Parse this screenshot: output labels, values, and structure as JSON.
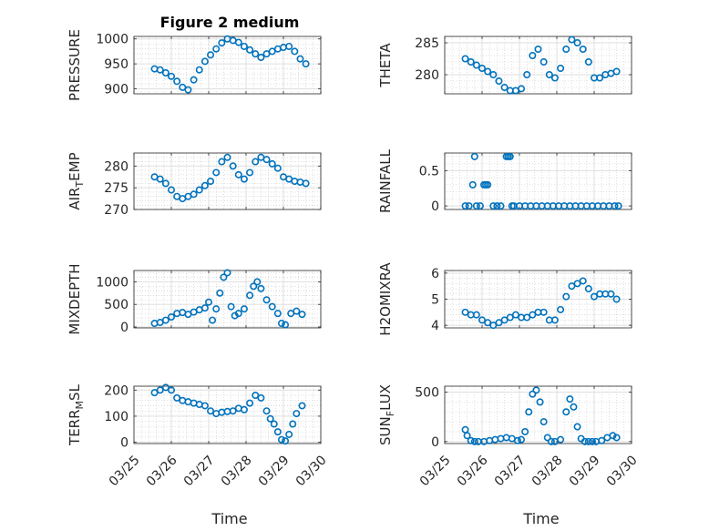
{
  "figure": {
    "title": "Figure 2 medium",
    "xlabel": "Time",
    "x_tick_labels": [
      "03/25",
      "03/26",
      "03/27",
      "03/28",
      "03/29",
      "03/30"
    ],
    "marker_color": "#0072BD"
  },
  "chart_data": [
    {
      "type": "scatter",
      "ylabel": "PRESSURE",
      "ylim": [
        890,
        1005
      ],
      "yticks": [
        900,
        950,
        1000
      ],
      "grid": true,
      "x_range": [
        0,
        5
      ],
      "x": [
        0.55,
        0.7,
        0.85,
        1.0,
        1.15,
        1.3,
        1.45,
        1.6,
        1.75,
        1.9,
        2.05,
        2.2,
        2.35,
        2.5,
        2.65,
        2.8,
        2.95,
        3.1,
        3.25,
        3.4,
        3.55,
        3.7,
        3.85,
        4.0,
        4.15,
        4.3,
        4.45,
        4.6
      ],
      "y": [
        940,
        938,
        932,
        925,
        915,
        903,
        898,
        918,
        938,
        955,
        968,
        980,
        992,
        1000,
        997,
        993,
        985,
        978,
        970,
        963,
        970,
        975,
        980,
        983,
        985,
        975,
        960,
        950
      ]
    },
    {
      "type": "scatter",
      "ylabel": "THETA",
      "ylim": [
        277,
        286
      ],
      "yticks": [
        280,
        285
      ],
      "grid": true,
      "x_range": [
        0,
        5
      ],
      "x": [
        0.55,
        0.7,
        0.85,
        1.0,
        1.15,
        1.3,
        1.45,
        1.6,
        1.75,
        1.9,
        2.05,
        2.2,
        2.35,
        2.5,
        2.65,
        2.8,
        2.95,
        3.1,
        3.25,
        3.4,
        3.55,
        3.7,
        3.85,
        4.0,
        4.15,
        4.3,
        4.45,
        4.6
      ],
      "y": [
        282.5,
        282,
        281.5,
        281,
        280.5,
        280,
        279,
        278,
        277.5,
        277.5,
        277.8,
        280,
        283,
        284,
        282,
        280,
        279.5,
        281,
        284,
        285.5,
        285,
        284,
        282,
        279.5,
        279.5,
        280,
        280.2,
        280.5
      ]
    },
    {
      "type": "scatter",
      "ylabel": "AIR_TEMP",
      "ylim": [
        270,
        283
      ],
      "yticks": [
        270,
        275,
        280
      ],
      "grid": true,
      "x_range": [
        0,
        5
      ],
      "x": [
        0.55,
        0.7,
        0.85,
        1.0,
        1.15,
        1.3,
        1.45,
        1.6,
        1.75,
        1.9,
        2.05,
        2.2,
        2.35,
        2.5,
        2.65,
        2.8,
        2.95,
        3.1,
        3.25,
        3.4,
        3.55,
        3.7,
        3.85,
        4.0,
        4.15,
        4.3,
        4.45,
        4.6
      ],
      "y": [
        277.5,
        277,
        276,
        274.5,
        273,
        272.5,
        273,
        273.5,
        274.5,
        275.5,
        276.5,
        278.5,
        281,
        282,
        280,
        278,
        277,
        278.5,
        281,
        282,
        281.5,
        280.5,
        279.5,
        277.5,
        277,
        276.5,
        276.3,
        276
      ]
    },
    {
      "type": "scatter",
      "ylabel": "RAINFALL",
      "ylim": [
        -0.05,
        0.75
      ],
      "yticks": [
        0,
        0.5
      ],
      "grid": true,
      "x_range": [
        0,
        5
      ],
      "x": [
        0.55,
        0.65,
        0.75,
        0.8,
        0.85,
        0.95,
        1.05,
        1.1,
        1.15,
        1.3,
        1.4,
        1.5,
        1.65,
        1.7,
        1.75,
        1.8,
        1.85,
        2.0,
        2.15,
        2.3,
        2.45,
        2.6,
        2.75,
        2.9,
        3.05,
        3.2,
        3.35,
        3.5,
        3.65,
        3.8,
        3.95,
        4.1,
        4.25,
        4.4,
        4.55,
        4.65
      ],
      "y": [
        0,
        0,
        0.3,
        0.7,
        0,
        0,
        0.3,
        0.3,
        0.3,
        0,
        0,
        0,
        0.7,
        0.7,
        0.7,
        0,
        0,
        0,
        0,
        0,
        0,
        0,
        0,
        0,
        0,
        0,
        0,
        0,
        0,
        0,
        0,
        0,
        0,
        0,
        0,
        0
      ]
    },
    {
      "type": "scatter",
      "ylabel": "MIXDEPTH",
      "ylim": [
        -20,
        1250
      ],
      "yticks": [
        0,
        500,
        1000
      ],
      "grid": true,
      "x_range": [
        0,
        5
      ],
      "x": [
        0.55,
        0.7,
        0.85,
        1.0,
        1.15,
        1.3,
        1.45,
        1.6,
        1.75,
        1.9,
        2.0,
        2.1,
        2.2,
        2.3,
        2.4,
        2.5,
        2.6,
        2.7,
        2.8,
        2.95,
        3.1,
        3.2,
        3.3,
        3.4,
        3.55,
        3.7,
        3.85,
        3.95,
        4.05,
        4.2,
        4.35,
        4.5
      ],
      "y": [
        80,
        100,
        150,
        220,
        300,
        320,
        280,
        330,
        380,
        420,
        550,
        150,
        400,
        750,
        1100,
        1200,
        450,
        250,
        300,
        400,
        700,
        900,
        1000,
        850,
        600,
        450,
        300,
        80,
        50,
        300,
        350,
        280
      ]
    },
    {
      "type": "scatter",
      "ylabel": "H2OMIXRA",
      "ylim": [
        3.9,
        6.1
      ],
      "yticks": [
        4,
        5,
        6
      ],
      "grid": true,
      "x_range": [
        0,
        5
      ],
      "x": [
        0.55,
        0.7,
        0.85,
        1.0,
        1.15,
        1.3,
        1.45,
        1.6,
        1.75,
        1.9,
        2.05,
        2.2,
        2.35,
        2.5,
        2.65,
        2.8,
        2.95,
        3.1,
        3.25,
        3.4,
        3.55,
        3.7,
        3.85,
        4.0,
        4.15,
        4.3,
        4.45,
        4.6
      ],
      "y": [
        4.5,
        4.4,
        4.4,
        4.2,
        4.1,
        4.0,
        4.1,
        4.2,
        4.3,
        4.4,
        4.3,
        4.3,
        4.4,
        4.5,
        4.5,
        4.2,
        4.2,
        4.6,
        5.1,
        5.5,
        5.6,
        5.7,
        5.4,
        5.1,
        5.2,
        5.2,
        5.2,
        5.0
      ]
    },
    {
      "type": "scatter",
      "ylabel": "TERR_MSL",
      "ylim": [
        -5,
        215
      ],
      "yticks": [
        0,
        100,
        200
      ],
      "grid": true,
      "x_range": [
        0,
        5
      ],
      "x": [
        0.55,
        0.7,
        0.85,
        1.0,
        1.15,
        1.3,
        1.45,
        1.6,
        1.75,
        1.9,
        2.05,
        2.2,
        2.35,
        2.5,
        2.65,
        2.8,
        2.95,
        3.1,
        3.25,
        3.4,
        3.55,
        3.65,
        3.75,
        3.85,
        3.95,
        4.05,
        4.15,
        4.25,
        4.35,
        4.5
      ],
      "y": [
        190,
        200,
        210,
        200,
        170,
        160,
        155,
        150,
        145,
        140,
        120,
        110,
        115,
        118,
        120,
        130,
        125,
        150,
        180,
        170,
        120,
        90,
        70,
        40,
        10,
        5,
        30,
        70,
        110,
        140
      ]
    },
    {
      "type": "scatter",
      "ylabel": "SUN_FLUX",
      "ylim": [
        -20,
        560
      ],
      "yticks": [
        0,
        500
      ],
      "grid": true,
      "x_range": [
        0,
        5
      ],
      "x": [
        0.55,
        0.6,
        0.7,
        0.8,
        0.9,
        1.05,
        1.2,
        1.35,
        1.5,
        1.65,
        1.8,
        1.95,
        2.05,
        2.15,
        2.25,
        2.35,
        2.45,
        2.55,
        2.65,
        2.75,
        2.85,
        2.95,
        3.1,
        3.25,
        3.35,
        3.45,
        3.55,
        3.65,
        3.75,
        3.85,
        3.95,
        4.05,
        4.2,
        4.35,
        4.5,
        4.6
      ],
      "y": [
        120,
        60,
        10,
        0,
        0,
        0,
        10,
        20,
        30,
        40,
        30,
        10,
        20,
        100,
        300,
        480,
        520,
        400,
        200,
        40,
        0,
        0,
        20,
        300,
        430,
        350,
        150,
        30,
        0,
        0,
        0,
        0,
        10,
        40,
        60,
        40
      ]
    }
  ]
}
